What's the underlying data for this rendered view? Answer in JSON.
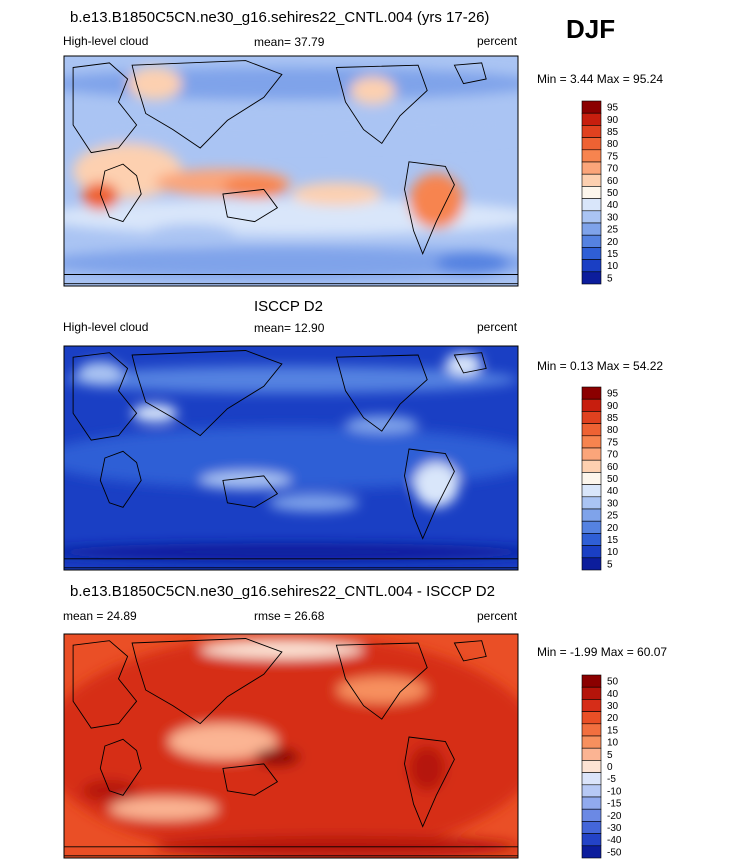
{
  "season": "DJF",
  "chart_data": [
    {
      "type": "heatmap",
      "title": "b.e13.B1850C5CN.ne30_g16.sehires22_CNTL.004 (yrs 17-26)",
      "left_label": "High-level cloud",
      "center_label": "mean=  37.79",
      "right_label": "percent",
      "minmax_label": "Min =   3.44 Max =  95.24",
      "min": 3.44,
      "max": 95.24,
      "mean": 37.79,
      "colorbar_levels": [
        "95",
        "90",
        "85",
        "80",
        "75",
        "70",
        "60",
        "50",
        "40",
        "30",
        "25",
        "20",
        "15",
        "10",
        "5"
      ],
      "colorbar_colors": [
        "#8b0000",
        "#c71e0e",
        "#e0411f",
        "#ee6233",
        "#f7844f",
        "#fba57a",
        "#fdd0b0",
        "#fdf6ec",
        "#d9e6fa",
        "#aac4f3",
        "#7fa3ea",
        "#5582e1",
        "#2f5fd6",
        "#1a3fc4",
        "#0c1d9c"
      ]
    },
    {
      "type": "heatmap",
      "title": "ISCCP D2",
      "left_label": "High-level cloud",
      "center_label": "mean=  12.90",
      "right_label": "percent",
      "minmax_label": "Min =   0.13 Max =  54.22",
      "min": 0.13,
      "max": 54.22,
      "mean": 12.9,
      "colorbar_levels": [
        "95",
        "90",
        "85",
        "80",
        "75",
        "70",
        "60",
        "50",
        "40",
        "30",
        "25",
        "20",
        "15",
        "10",
        "5"
      ],
      "colorbar_colors": [
        "#8b0000",
        "#c71e0e",
        "#e0411f",
        "#ee6233",
        "#f7844f",
        "#fba57a",
        "#fdd0b0",
        "#fdf6ec",
        "#d9e6fa",
        "#aac4f3",
        "#7fa3ea",
        "#5582e1",
        "#2f5fd6",
        "#1a3fc4",
        "#0c1d9c"
      ]
    },
    {
      "type": "heatmap",
      "title": "b.e13.B1850C5CN.ne30_g16.sehires22_CNTL.004 - ISCCP D2",
      "left_label": "mean =  24.89",
      "center_label": "rmse =  26.68",
      "right_label": "percent",
      "minmax_label": "Min =  -1.99 Max =  60.07",
      "min": -1.99,
      "max": 60.07,
      "mean": 24.89,
      "rmse": 26.68,
      "colorbar_levels": [
        "50",
        "40",
        "30",
        "20",
        "15",
        "10",
        "5",
        "0",
        "-5",
        "-10",
        "-15",
        "-20",
        "-30",
        "-40",
        "-50"
      ],
      "colorbar_colors": [
        "#8b0000",
        "#b5140a",
        "#d62d18",
        "#ea4f26",
        "#f26f3f",
        "#f7905e",
        "#fbb493",
        "#fde3d4",
        "#dbe4fa",
        "#b7c9f5",
        "#91aaee",
        "#6b89e4",
        "#4466d9",
        "#2343c7",
        "#0c1d9c"
      ]
    }
  ]
}
